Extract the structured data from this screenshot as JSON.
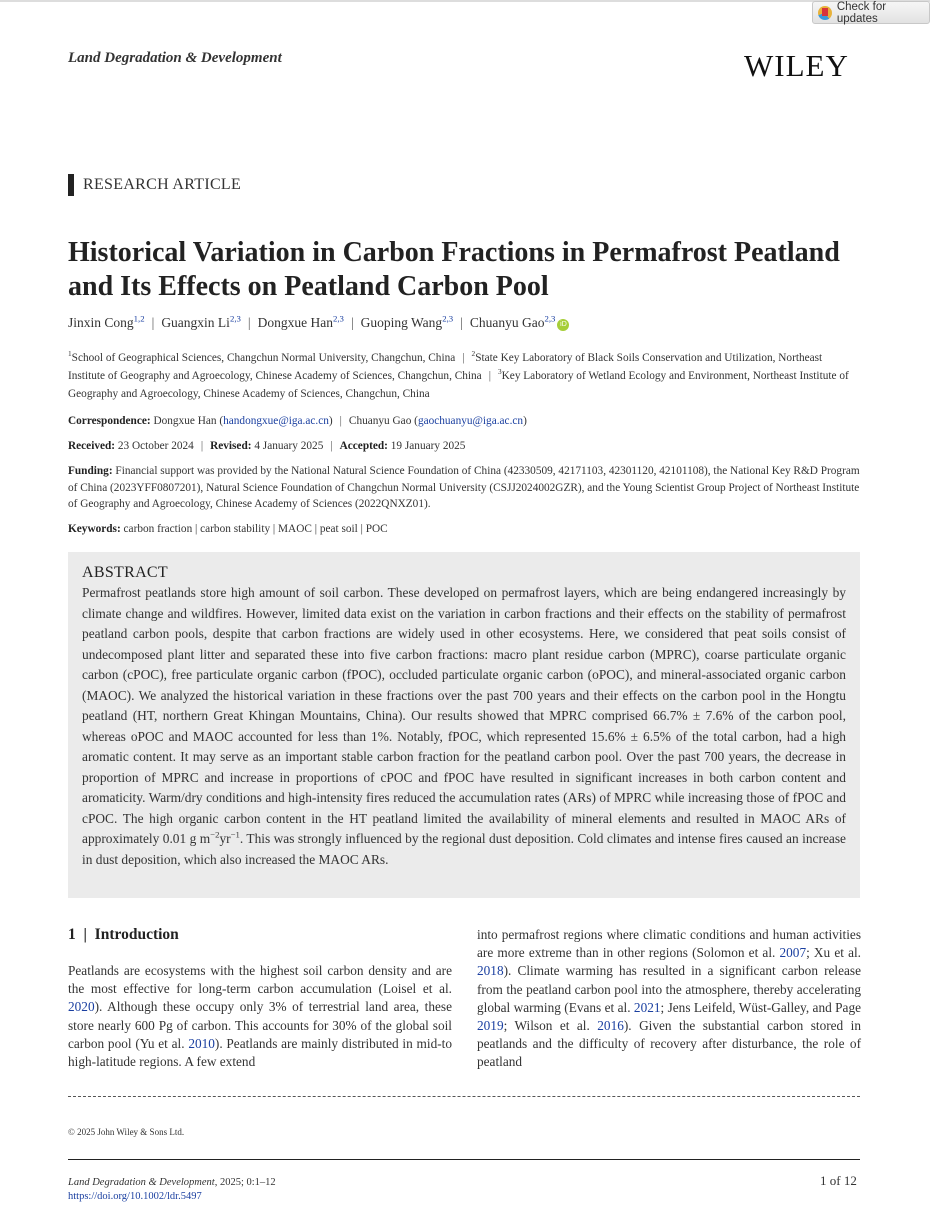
{
  "check_updates": {
    "label": "Check for updates"
  },
  "header": {
    "journal": "Land Degradation & Development",
    "publisher": "WILEY"
  },
  "article_type": "RESEARCH ARTICLE",
  "title": "Historical Variation in Carbon Fractions in Permafrost Peatland and Its Effects on Peatland Carbon Pool",
  "authors": [
    {
      "name": "Jinxin Cong",
      "sup": "1,2"
    },
    {
      "name": "Guangxin Li",
      "sup": "2,3"
    },
    {
      "name": "Dongxue Han",
      "sup": "2,3"
    },
    {
      "name": "Guoping Wang",
      "sup": "2,3"
    },
    {
      "name": "Chuanyu Gao",
      "sup": "2,3",
      "orcid": "iD"
    }
  ],
  "separator": "|",
  "affiliations": [
    {
      "num": "1",
      "text": "School of Geographical Sciences, Changchun Normal University, Changchun, China"
    },
    {
      "num": "2",
      "text": "State Key Laboratory of Black Soils Conservation and Utilization, Northeast Institute of Geography and Agroecology, Chinese Academy of Sciences, Changchun, China"
    },
    {
      "num": "3",
      "text": "Key Laboratory of Wetland Ecology and Environment, Northeast Institute of Geography and Agroecology, Chinese Academy of Sciences, Changchun, China"
    }
  ],
  "correspondence": {
    "label": "Correspondence:",
    "p1": "Dongxue Han (",
    "email1": "handongxue@iga.ac.cn",
    "p2": ")",
    "p3": "Chuanyu Gao (",
    "email2": "gaochuanyu@iga.ac.cn",
    "p4": ")"
  },
  "dates": {
    "received_label": "Received:",
    "received": "23 October 2024",
    "revised_label": "Revised:",
    "revised": "4 January 2025",
    "accepted_label": "Accepted:",
    "accepted": "19 January 2025"
  },
  "funding": {
    "label": "Funding:",
    "text": "Financial support was provided by the National Natural Science Foundation of China (42330509, 42171103, 42301120, 42101108), the National Key R&D Program of China (2023YFF0807201), Natural Science Foundation of Changchun Normal University (CSJJ2024002GZR), and the Young Scientist Group Project of Northeast Institute of Geography and Agroecology, Chinese Academy of Sciences (2022QNXZ01)."
  },
  "keywords": {
    "label": "Keywords:",
    "text": "carbon fraction | carbon stability | MAOC | peat soil | POC"
  },
  "abstract": {
    "heading": "ABSTRACT",
    "text1": "Permafrost peatlands store high amount of soil carbon. These developed on permafrost layers, which are being endangered increasingly by climate change and wildfires. However, limited data exist on the variation in carbon fractions and their effects on the stability of permafrost peatland carbon pools, despite that carbon fractions are widely used in other ecosystems. Here, we considered that peat soils consist of undecomposed plant litter and separated these into five carbon fractions: macro plant residue carbon (MPRC), coarse particulate organic carbon (cPOC), free particulate organic carbon (fPOC), occluded particulate organic carbon (oPOC), and mineral-associated organic carbon (MAOC). We analyzed the historical variation in these fractions over the past 700 years and their effects on the carbon pool in the Hongtu peatland (HT, northern Great Khingan Mountains, China). Our results showed that MPRC comprised 66.7% ± 7.6% of the carbon pool, whereas oPOC and MAOC accounted for less than 1%. Notably, fPOC, which represented 15.6% ± 6.5% of the total carbon, had a high aromatic content. It may serve as an important stable carbon fraction for the peatland carbon pool. Over the past 700 years, the decrease in proportion of MPRC and increase in proportions of cPOC and fPOC have resulted in significant increases in both carbon content and aromaticity. Warm/dry conditions and high-intensity fires reduced the accumulation rates (ARs) of MPRC while increasing those of fPOC and cPOC. The high organic carbon content in the HT peatland limited the availability of mineral elements and resulted in MAOC ARs of approximately 0.01 g m",
    "sup1": "−2",
    "text2": "yr",
    "sup2": "−1",
    "text3": ". This was strongly influenced by the regional dust deposition. Cold climates and intense fires caused an increase in dust deposition, which also increased the MAOC ARs."
  },
  "intro": {
    "heading": "1  |  Introduction",
    "left": [
      {
        "t": "Peatlands are ecosystems with the highest soil carbon density and are the most effective for long-term carbon accumulation (Loisel et al. "
      },
      {
        "l": "2020"
      },
      {
        "t": "). Although these occupy only 3% of terrestrial land area, these store nearly 600 Pg of carbon. This accounts for 30% of the global soil carbon pool (Yu et al. "
      },
      {
        "l": "2010"
      },
      {
        "t": "). Peatlands are mainly distributed in mid-to high-latitude regions. A few extend"
      }
    ],
    "right": [
      {
        "t": "into permafrost regions where climatic conditions and human activities are more extreme than in other regions (Solomon et al. "
      },
      {
        "l": "2007"
      },
      {
        "t": "; Xu et al. "
      },
      {
        "l": "2018"
      },
      {
        "t": "). Climate warming has resulted in a significant carbon release from the peatland carbon pool into the atmosphere, thereby accelerating global warming (Evans et al. "
      },
      {
        "l": "2021"
      },
      {
        "t": "; Jens Leifeld, Wüst-Galley, and Page "
      },
      {
        "l": "2019"
      },
      {
        "t": "; Wilson et al. "
      },
      {
        "l": "2016"
      },
      {
        "t": "). Given the substantial carbon stored in peatlands and the difficulty of recovery after disturbance, the role of peatland"
      }
    ]
  },
  "footer": {
    "copyright": "© 2025 John Wiley & Sons Ltd.",
    "journal": "Land Degradation & Development",
    "citation": ", 2025; 0:1–12",
    "doi": "https://doi.org/10.1002/ldr.5497",
    "page": "1 of 12"
  },
  "colors": {
    "link": "#1a3fa0",
    "abstract_bg": "#ebebeb",
    "orcid": "#a6ce39"
  }
}
